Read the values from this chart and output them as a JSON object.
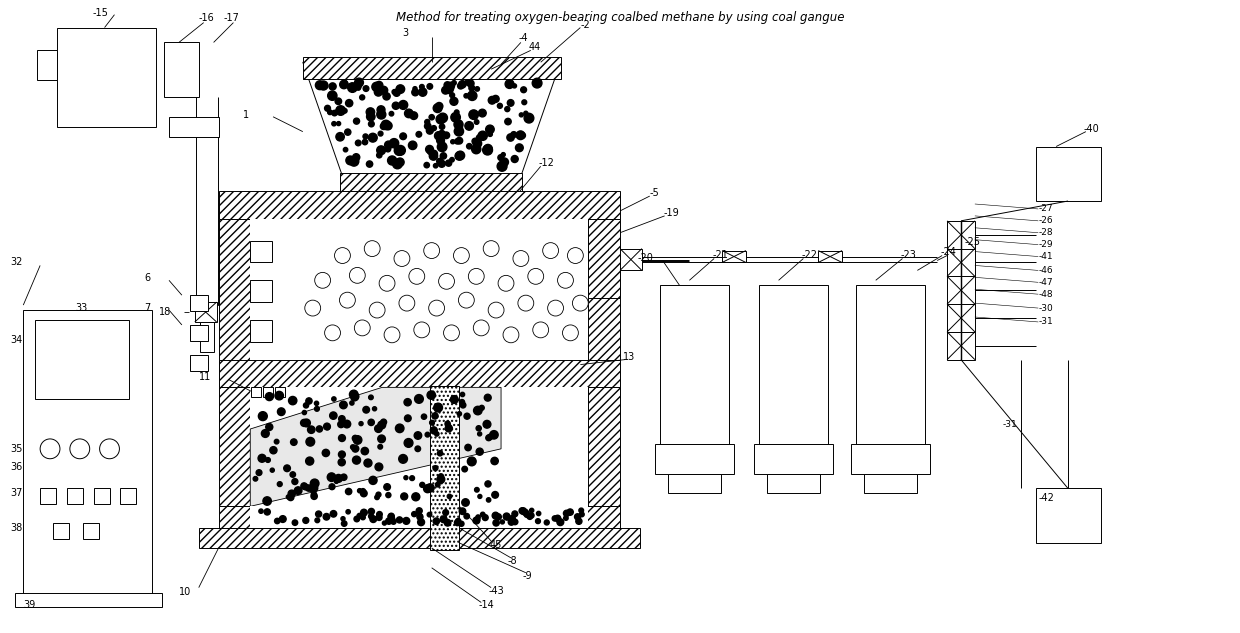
{
  "title": "Method for treating oxygen-bearing coalbed methane by using coal gangue",
  "bg_color": "#ffffff",
  "fig_width": 12.4,
  "fig_height": 6.33,
  "lw": 0.7
}
